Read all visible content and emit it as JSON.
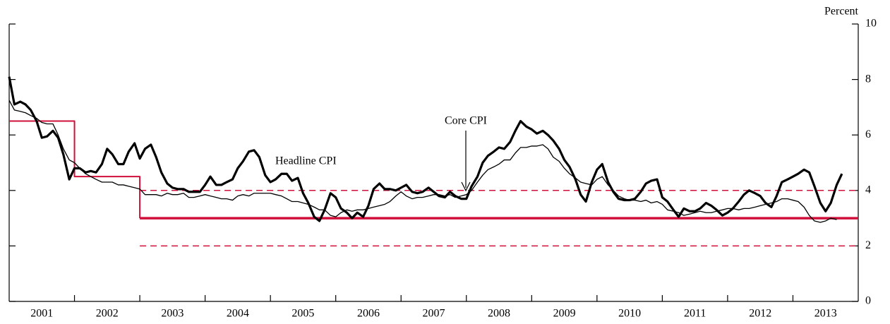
{
  "chart_data": {
    "type": "line",
    "y_label": "Percent",
    "xlim": [
      2001,
      2014
    ],
    "xticks": [
      {
        "value": 2001.5,
        "label": "2001"
      },
      {
        "value": 2002.5,
        "label": "2002"
      },
      {
        "value": 2003.5,
        "label": "2003"
      },
      {
        "value": 2004.5,
        "label": "2004"
      },
      {
        "value": 2005.5,
        "label": "2005"
      },
      {
        "value": 2006.5,
        "label": "2006"
      },
      {
        "value": 2007.5,
        "label": "2007"
      },
      {
        "value": 2008.5,
        "label": "2008"
      },
      {
        "value": 2009.5,
        "label": "2009"
      },
      {
        "value": 2010.5,
        "label": "2010"
      },
      {
        "value": 2011.5,
        "label": "2011"
      },
      {
        "value": 2012.5,
        "label": "2012"
      },
      {
        "value": 2013.5,
        "label": "2013"
      }
    ],
    "xticks_minor": [
      2002,
      2003,
      2004,
      2005,
      2006,
      2007,
      2008,
      2009,
      2010,
      2011,
      2012,
      2013
    ],
    "ylim": [
      0,
      10
    ],
    "yticks": [
      0,
      2,
      4,
      6,
      8,
      10
    ],
    "x": [
      2001.0,
      2001.08,
      2001.17,
      2001.25,
      2001.33,
      2001.42,
      2001.5,
      2001.58,
      2001.67,
      2001.75,
      2001.83,
      2001.92,
      2002.0,
      2002.08,
      2002.17,
      2002.25,
      2002.33,
      2002.42,
      2002.5,
      2002.58,
      2002.67,
      2002.75,
      2002.83,
      2002.92,
      2003.0,
      2003.08,
      2003.17,
      2003.25,
      2003.33,
      2003.42,
      2003.5,
      2003.58,
      2003.67,
      2003.75,
      2003.83,
      2003.92,
      2004.0,
      2004.08,
      2004.17,
      2004.25,
      2004.33,
      2004.42,
      2004.5,
      2004.58,
      2004.67,
      2004.75,
      2004.83,
      2004.92,
      2005.0,
      2005.08,
      2005.17,
      2005.25,
      2005.33,
      2005.42,
      2005.5,
      2005.58,
      2005.67,
      2005.75,
      2005.83,
      2005.92,
      2006.0,
      2006.08,
      2006.17,
      2006.25,
      2006.33,
      2006.42,
      2006.5,
      2006.58,
      2006.67,
      2006.75,
      2006.83,
      2006.92,
      2007.0,
      2007.08,
      2007.17,
      2007.25,
      2007.33,
      2007.42,
      2007.5,
      2007.58,
      2007.67,
      2007.75,
      2007.83,
      2007.92,
      2008.0,
      2008.08,
      2008.17,
      2008.25,
      2008.33,
      2008.42,
      2008.5,
      2008.58,
      2008.67,
      2008.75,
      2008.83,
      2008.92,
      2009.0,
      2009.08,
      2009.17,
      2009.25,
      2009.33,
      2009.42,
      2009.5,
      2009.58,
      2009.67,
      2009.75,
      2009.83,
      2009.92,
      2010.0,
      2010.08,
      2010.17,
      2010.25,
      2010.33,
      2010.42,
      2010.5,
      2010.58,
      2010.67,
      2010.75,
      2010.83,
      2010.92,
      2011.0,
      2011.08,
      2011.17,
      2011.25,
      2011.33,
      2011.42,
      2011.5,
      2011.58,
      2011.67,
      2011.75,
      2011.83,
      2011.92,
      2012.0,
      2012.08,
      2012.17,
      2012.25,
      2012.33,
      2012.42,
      2012.5,
      2012.58,
      2012.67,
      2012.75,
      2012.83,
      2012.92,
      2013.0,
      2013.08,
      2013.17,
      2013.25,
      2013.33,
      2013.42,
      2013.5,
      2013.58,
      2013.67,
      2013.75
    ],
    "series": [
      {
        "name": "Headline CPI",
        "color": "#000000",
        "line_width": 3.2,
        "values": [
          8.1,
          7.1,
          7.2,
          7.1,
          6.9,
          6.5,
          5.9,
          5.95,
          6.15,
          5.9,
          5.3,
          4.4,
          4.8,
          4.8,
          4.65,
          4.7,
          4.65,
          4.95,
          5.5,
          5.3,
          4.95,
          4.95,
          5.4,
          5.7,
          5.15,
          5.5,
          5.65,
          5.2,
          4.65,
          4.25,
          4.1,
          4.05,
          4.05,
          3.95,
          3.95,
          3.95,
          4.2,
          4.5,
          4.2,
          4.2,
          4.3,
          4.4,
          4.8,
          5.05,
          5.4,
          5.45,
          5.2,
          4.55,
          4.3,
          4.4,
          4.6,
          4.6,
          4.35,
          4.45,
          3.9,
          3.55,
          3.05,
          2.9,
          3.3,
          3.9,
          3.75,
          3.35,
          3.2,
          3.0,
          3.2,
          3.05,
          3.45,
          4.05,
          4.25,
          4.05,
          4.05,
          4.0,
          4.1,
          4.2,
          3.95,
          3.9,
          3.95,
          4.1,
          3.95,
          3.8,
          3.75,
          3.95,
          3.8,
          3.7,
          3.7,
          4.15,
          4.5,
          5.0,
          5.25,
          5.4,
          5.55,
          5.5,
          5.75,
          6.15,
          6.5,
          6.3,
          6.2,
          6.05,
          6.15,
          6.0,
          5.8,
          5.5,
          5.1,
          4.85,
          4.4,
          3.85,
          3.6,
          4.3,
          4.75,
          4.95,
          4.3,
          3.95,
          3.7,
          3.65,
          3.65,
          3.7,
          3.95,
          4.25,
          4.35,
          4.4,
          3.75,
          3.6,
          3.3,
          3.05,
          3.35,
          3.25,
          3.25,
          3.35,
          3.55,
          3.45,
          3.3,
          3.1,
          3.2,
          3.35,
          3.6,
          3.85,
          4.0,
          3.9,
          3.8,
          3.55,
          3.4,
          3.8,
          4.3,
          4.4,
          4.5,
          4.6,
          4.75,
          4.65,
          4.15,
          3.55,
          3.25,
          3.55,
          4.2,
          4.6
        ]
      },
      {
        "name": "Core CPI",
        "color": "#000000",
        "line_width": 1.3,
        "values": [
          7.25,
          6.9,
          6.85,
          6.8,
          6.7,
          6.6,
          6.45,
          6.4,
          6.4,
          6.0,
          5.5,
          5.1,
          5.0,
          4.8,
          4.6,
          4.5,
          4.4,
          4.3,
          4.3,
          4.3,
          4.2,
          4.2,
          4.15,
          4.1,
          4.05,
          3.85,
          3.85,
          3.85,
          3.8,
          3.9,
          3.85,
          3.85,
          3.9,
          3.75,
          3.75,
          3.8,
          3.85,
          3.8,
          3.75,
          3.7,
          3.7,
          3.65,
          3.8,
          3.85,
          3.8,
          3.9,
          3.9,
          3.9,
          3.9,
          3.85,
          3.8,
          3.7,
          3.6,
          3.6,
          3.55,
          3.5,
          3.4,
          3.3,
          3.3,
          3.1,
          3.05,
          3.2,
          3.3,
          3.25,
          3.3,
          3.3,
          3.35,
          3.4,
          3.45,
          3.5,
          3.6,
          3.8,
          3.95,
          3.8,
          3.7,
          3.75,
          3.75,
          3.8,
          3.85,
          3.85,
          3.8,
          3.85,
          3.75,
          3.8,
          3.85,
          4.0,
          4.3,
          4.55,
          4.75,
          4.85,
          4.95,
          5.1,
          5.1,
          5.35,
          5.55,
          5.55,
          5.6,
          5.6,
          5.65,
          5.5,
          5.2,
          5.05,
          4.8,
          4.6,
          4.45,
          4.3,
          4.25,
          4.2,
          4.4,
          4.5,
          4.2,
          4.0,
          3.8,
          3.7,
          3.65,
          3.65,
          3.6,
          3.65,
          3.55,
          3.6,
          3.5,
          3.3,
          3.25,
          3.2,
          3.1,
          3.15,
          3.2,
          3.25,
          3.2,
          3.2,
          3.25,
          3.3,
          3.35,
          3.35,
          3.3,
          3.35,
          3.35,
          3.4,
          3.45,
          3.5,
          3.55,
          3.6,
          3.7,
          3.7,
          3.65,
          3.6,
          3.4,
          3.1,
          2.9,
          2.85,
          2.9,
          3.0,
          2.95,
          null
        ]
      },
      {
        "color": "#d0103a",
        "line_width": 2,
        "x": [
          2001,
          2002,
          2002,
          2003,
          2003
        ],
        "values": [
          6.5,
          6.5,
          4.5,
          4.5,
          3
        ]
      },
      {
        "color": "#d0103a",
        "line_width": 3.5,
        "x": [
          2003,
          2014
        ],
        "values": [
          3,
          3
        ]
      },
      {
        "color": "#d0103a",
        "line_width": 1.5,
        "dashed": true,
        "x": [
          2003,
          2014
        ],
        "values": [
          4,
          4
        ]
      },
      {
        "color": "#d0103a",
        "line_width": 1.5,
        "dashed": true,
        "x": [
          2003,
          2014
        ],
        "values": [
          2,
          2
        ]
      }
    ]
  }
}
